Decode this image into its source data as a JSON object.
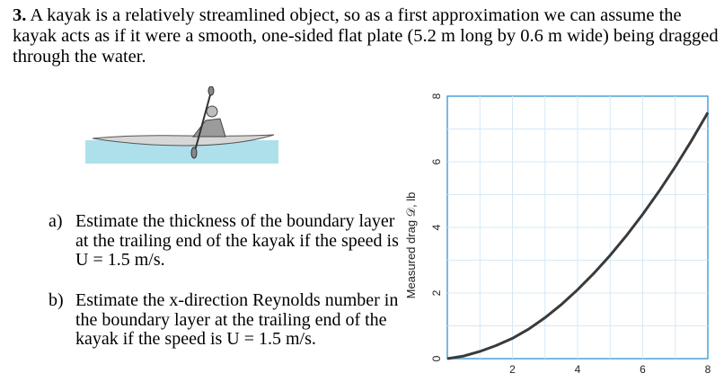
{
  "problem": {
    "number": "3.",
    "text": "A kayak is a relatively streamlined object, so as a first approximation we can assume the kayak acts as if it were a smooth, one-sided flat plate (5.2 m long by 0.6 m wide) being dragged through the water."
  },
  "parts": [
    {
      "letter": "a)",
      "text": "Estimate the thickness of the boundary layer at the trailing end of the kayak if the speed is U = 1.5 m/s."
    },
    {
      "letter": "b)",
      "text": "Estimate the x-direction Reynolds number in the boundary layer at the trailing end of the kayak if the speed is U = 1.5 m/s."
    }
  ],
  "chart_data": {
    "type": "line",
    "ylabel": "Measured drag 𝒟, lb",
    "xlabel": "",
    "xlim": [
      0,
      8
    ],
    "ylim": [
      0,
      8
    ],
    "x_ticks": [
      "2",
      "4",
      "6",
      "8"
    ],
    "y_ticks": [
      "0",
      "2",
      "4",
      "6",
      "8"
    ],
    "series": [
      {
        "x": [
          0,
          0.5,
          1,
          1.5,
          2,
          2.5,
          3,
          3.5,
          4,
          4.5,
          5,
          5.5,
          6,
          6.5,
          7,
          7.5,
          8
        ],
        "y": [
          0,
          0.08,
          0.22,
          0.4,
          0.62,
          0.9,
          1.25,
          1.65,
          2.1,
          2.6,
          3.15,
          3.75,
          4.4,
          5.1,
          5.85,
          6.65,
          7.5
        ],
        "color": "#3a3a3a"
      }
    ],
    "grid": true
  }
}
